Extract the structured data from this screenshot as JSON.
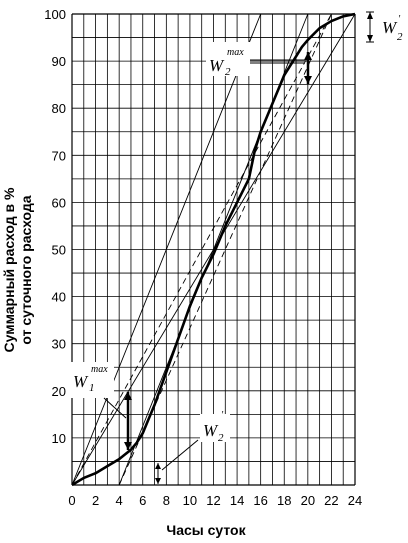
{
  "chart_data": {
    "type": "line",
    "xlabel": "Часы суток",
    "ylabel_lines": [
      "Суммарный расход в %",
      "от суточного расхода"
    ],
    "x_ticks": [
      0,
      2,
      4,
      6,
      8,
      10,
      12,
      14,
      16,
      18,
      20,
      22,
      24
    ],
    "y_ticks": [
      10,
      20,
      30,
      40,
      50,
      60,
      70,
      80,
      90,
      100
    ],
    "xlim": [
      0,
      24
    ],
    "ylim": [
      0,
      100
    ],
    "grid": true,
    "series": [
      {
        "style": "bold",
        "x": [
          0,
          1,
          2,
          3,
          4,
          4.5,
          5,
          5.5,
          6,
          6.5,
          7,
          8,
          9,
          10,
          11,
          12,
          13,
          14,
          15,
          15.5,
          16,
          17,
          18,
          19,
          19.5,
          20,
          21,
          22,
          23,
          24
        ],
        "y": [
          0,
          1.5,
          2.5,
          4,
          5.5,
          6.5,
          7.5,
          9,
          11,
          14,
          17,
          24,
          31,
          38,
          44,
          49,
          55,
          60,
          65,
          71,
          75,
          81,
          87,
          91,
          93,
          94.5,
          97,
          98.5,
          99.5,
          100
        ]
      }
    ],
    "reference_lines": [
      {
        "style": "thin",
        "x": [
          0,
          24
        ],
        "y": [
          0,
          100
        ]
      },
      {
        "style": "thin",
        "x": [
          4,
          20
        ],
        "y": [
          0,
          100
        ]
      },
      {
        "style": "thin",
        "x": [
          0,
          16
        ],
        "y": [
          0,
          100
        ]
      },
      {
        "style": "dashed",
        "x": [
          4,
          22
        ],
        "y": [
          0,
          100
        ]
      },
      {
        "style": "dashed",
        "x": [
          0,
          22
        ],
        "y": [
          0,
          100
        ]
      }
    ],
    "annotations": {
      "w2max": {
        "main": "W",
        "sub": "2",
        "sup": "max"
      },
      "w2prime_top": {
        "main": "W",
        "sub": "2",
        "sup": "'"
      },
      "w1max": {
        "main": "W",
        "sub": "1",
        "sup": "max"
      },
      "w2prime_bottom": {
        "main": "W",
        "sub": "2",
        "sup": "'"
      }
    }
  }
}
